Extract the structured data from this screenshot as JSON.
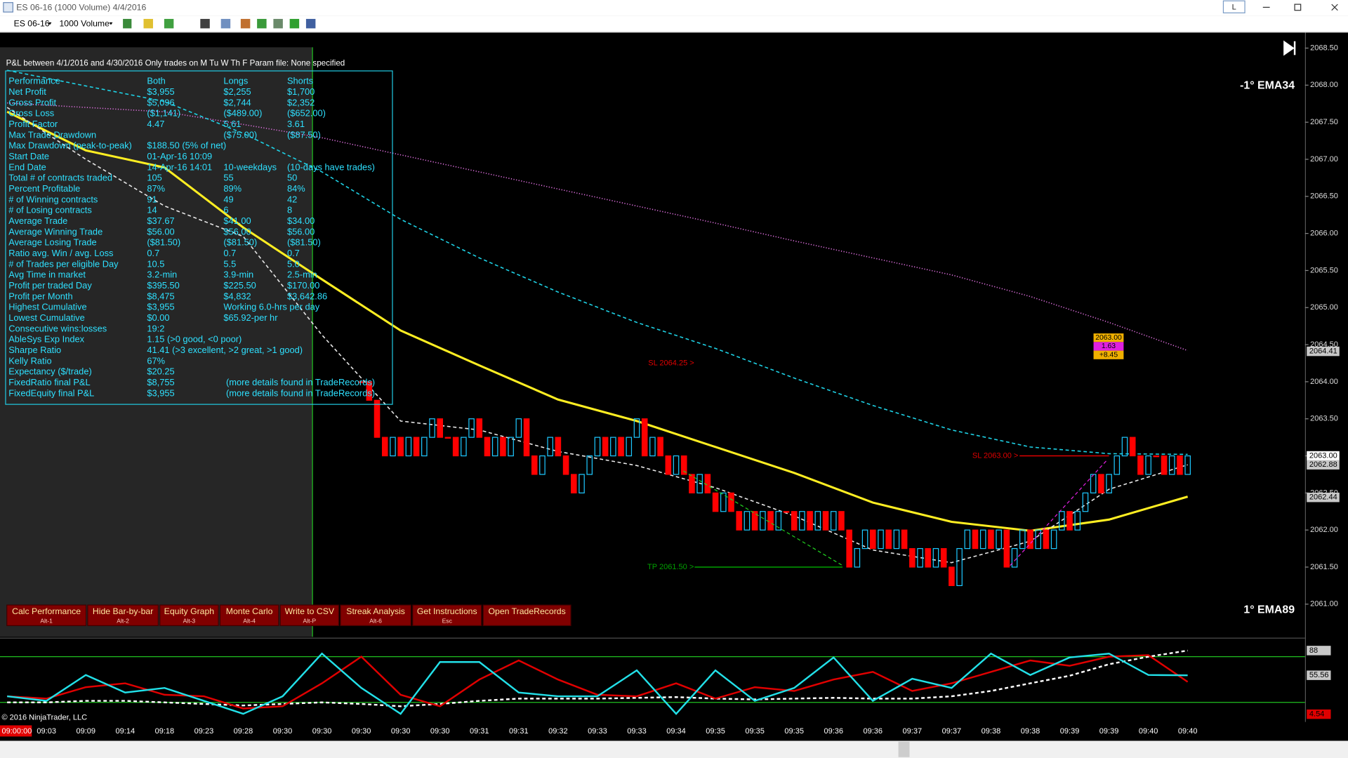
{
  "window": {
    "title": "ES 06-16 (1000 Volume)  4/4/2016",
    "layout_button": "L"
  },
  "toolbar": {
    "instrument": "ES 06-16",
    "interval": "1000 Volume"
  },
  "report": {
    "header": "P&L between 4/1/2016 and 4/30/2016  Only trades on M Tu W Th F   Param file: None specified",
    "rows": [
      [
        "Performance",
        "Both",
        "Longs",
        "Shorts"
      ],
      [
        "Net Profit",
        "$3,955",
        "$2,255",
        "$1,700"
      ],
      [
        "Gross Profit",
        "$5,096",
        "$2,744",
        "$2,352"
      ],
      [
        "Gross Loss",
        "($1,141)",
        "($489.00)",
        "($652.00)"
      ],
      [
        "Profit Factor",
        "4.47",
        "5.61",
        "3.61"
      ],
      [
        "Max Trade Drawdown",
        null,
        "($75.00)",
        "($87.50)"
      ],
      [
        "Max Drawdown (peak-to-peak)",
        "$188.50 (5% of net)"
      ],
      [
        "Start Date",
        "01-Apr-16 10:09"
      ],
      [
        "End Date",
        "14-Apr-16 14:01",
        "10-weekdays",
        "(10-days have trades)"
      ],
      [
        "Total # of contracts traded",
        "105",
        "55",
        "50"
      ],
      [
        "Percent Profitable",
        "87%",
        "89%",
        "84%"
      ],
      [
        "# of Winning contracts",
        "91",
        "49",
        "42"
      ],
      [
        "# of Losing contracts",
        "14",
        "6",
        "8"
      ],
      [
        "Average Trade",
        "$37.67",
        "$41.00",
        "$34.00"
      ],
      [
        "Average Winning Trade",
        "$56.00",
        "$56.00",
        "$56.00"
      ],
      [
        "Average Losing Trade",
        "($81.50)",
        "($81.50)",
        "($81.50)"
      ],
      [
        "Ratio avg. Win / avg. Loss",
        "0.7",
        "0.7",
        "0.7"
      ],
      [
        "# of Trades per eligible Day",
        "10.5",
        "5.5",
        "5.0"
      ],
      [
        "Avg Time in market",
        "3.2-min",
        "3.9-min",
        "2.5-min"
      ],
      [
        "Profit per traded Day",
        "$395.50",
        "$225.50",
        "$170.00"
      ],
      [
        "Profit per Month",
        "$8,475",
        "$4,832",
        "$3,642.86"
      ],
      [
        "Highest Cumulative",
        "$3,955",
        "Working 6.0-hrs per day"
      ],
      [
        "Lowest Cumulative",
        "$0.00",
        "$65.92-per hr"
      ],
      [
        "Consecutive wins:losses",
        "19:2"
      ],
      [
        "AbleSys Exp Index",
        "1.15 (>0 good, <0 poor)"
      ],
      [
        "Sharpe Ratio",
        "41.41 (>3 excellent, >2 great, >1 good)"
      ],
      [
        "Kelly Ratio",
        "67%"
      ],
      [
        "Expectancy ($/trade)",
        "$20.25"
      ],
      [
        "FixedRatio final P&L",
        "$8,755",
        "(more details found in TradeRecords)"
      ],
      [
        "FixedEquity final P&L",
        "$3,955",
        "(more details found in TradeRecords)"
      ]
    ]
  },
  "buttons": [
    {
      "label": "Calc Performance",
      "shortcut": "Alt-1"
    },
    {
      "label": "Hide Bar-by-bar",
      "shortcut": "Alt-2"
    },
    {
      "label": "Equity Graph",
      "shortcut": "Alt-3"
    },
    {
      "label": "Monte Carlo",
      "shortcut": "Alt-4"
    },
    {
      "label": "Write to CSV",
      "shortcut": "Alt-P"
    },
    {
      "label": "Streak Analysis",
      "shortcut": "Alt-6"
    },
    {
      "label": "Get Instructions",
      "shortcut": "Esc"
    },
    {
      "label": "Open TradeRecords"
    }
  ],
  "chart_data": {
    "type": "candlestick",
    "ylim": [
      2060.6,
      2068.7
    ],
    "yticks": [
      {
        "value": 2068.5,
        "label": "2068.50"
      },
      {
        "value": 2068,
        "label": "2068.00"
      },
      {
        "value": 2067.5,
        "label": "2067.50"
      },
      {
        "value": 2067,
        "label": "2067.00"
      },
      {
        "value": 2066.5,
        "label": "2066.50"
      },
      {
        "value": 2066,
        "label": "2066.00"
      },
      {
        "value": 2065.5,
        "label": "2065.50"
      },
      {
        "value": 2065,
        "label": "2065.00"
      },
      {
        "value": 2064.5,
        "label": "2064.50"
      },
      {
        "value": 2064,
        "label": "2064.00"
      },
      {
        "value": 2063.5,
        "label": "2063.50"
      },
      {
        "value": 2063,
        "label": "2063.00"
      },
      {
        "value": 2062.5,
        "label": "2062.50"
      },
      {
        "value": 2062,
        "label": "2062.00"
      },
      {
        "value": 2061.5,
        "label": "2061.50"
      },
      {
        "value": 2061,
        "label": "2061.00"
      }
    ],
    "time_labels": [
      "09:00:00",
      "09:03",
      "09:09",
      "09:14",
      "09:18",
      "09:23",
      "09:28",
      "09:30",
      "09:30",
      "09:30",
      "09:30",
      "09:30",
      "09:31",
      "09:31",
      "09:32",
      "09:33",
      "09:33",
      "09:34",
      "09:35",
      "09:35",
      "09:35",
      "09:36",
      "09:36",
      "09:37",
      "09:37",
      "09:38",
      "09:38",
      "09:39",
      "09:39",
      "09:40",
      "09:40"
    ],
    "candles": {
      "up_color": "#1ec8ff",
      "down_color": "#ff0000",
      "close": [
        2064.0,
        2063.75,
        2063.25,
        2063.0,
        2063.25,
        2063.0,
        2063.25,
        2063.0,
        2063.25,
        2063.5,
        2063.25,
        2063.25,
        2063.0,
        2063.25,
        2063.5,
        2063.25,
        2063.0,
        2063.25,
        2063.0,
        2063.25,
        2063.5,
        2063.0,
        2062.75,
        2063.0,
        2063.25,
        2063.0,
        2062.75,
        2062.5,
        2062.75,
        2063.0,
        2063.25,
        2063.0,
        2063.25,
        2063.0,
        2063.25,
        2063.5,
        2063.0,
        2063.25,
        2063.0,
        2062.75,
        2063.0,
        2062.75,
        2062.5,
        2062.75,
        2062.5,
        2062.25,
        2062.5,
        2062.25,
        2062.0,
        2062.25,
        2062.0,
        2062.25,
        2062.0,
        2062.25,
        2062.25,
        2062.0,
        2062.25,
        2062.0,
        2062.25,
        2062.0,
        2062.25,
        2062.0,
        2061.5,
        2061.75,
        2062.0,
        2061.75,
        2062.0,
        2061.75,
        2062.0,
        2061.75,
        2061.5,
        2061.75,
        2061.5,
        2061.75,
        2061.5,
        2061.25,
        2061.75,
        2062.0,
        2061.75,
        2062.0,
        2061.75,
        2062.0,
        2061.5,
        2061.75,
        2062.0,
        2061.75,
        2062.0,
        2061.75,
        2062.0,
        2062.25,
        2062.0,
        2062.25,
        2062.5,
        2062.75,
        2062.5,
        2062.75,
        2063.0,
        2063.25,
        2063.0,
        2062.75,
        2063.0,
        2063.0,
        2062.75,
        2063.0,
        2062.75,
        2063.0
      ]
    },
    "lines": [
      {
        "color": "#e070e0",
        "style": "dotted",
        "values": [
          2067.76,
          2067.7,
          2067.64,
          2067.47,
          2067.29,
          2067.06,
          2066.83,
          2066.6,
          2066.37,
          2066.14,
          2065.9,
          2065.67,
          2065.44,
          2065.15,
          2064.8,
          2064.42
        ]
      },
      {
        "color": "#1ed2e6",
        "style": "dashed",
        "values": [
          2068.2,
          2067.99,
          2067.78,
          2067.35,
          2066.83,
          2066.19,
          2065.67,
          2065.21,
          2064.8,
          2064.45,
          2064.05,
          2063.68,
          2063.35,
          2063.12,
          2063.03,
          2063.02
        ]
      },
      {
        "color": "#ffee22",
        "style": "solid",
        "values": [
          2067.64,
          2067.12,
          2066.89,
          2066.08,
          2065.38,
          2064.69,
          2064.22,
          2063.76,
          2063.47,
          2063.12,
          2062.77,
          2062.37,
          2062.11,
          2061.99,
          2062.14,
          2062.45
        ]
      },
      {
        "color": "#e8e8e8",
        "style": "dashed",
        "values": [
          2067.7,
          2067.0,
          2066.37,
          2065.96,
          2064.63,
          2063.47,
          2063.35,
          2063.06,
          2062.87,
          2062.57,
          2062.19,
          2061.73,
          2061.56,
          2061.85,
          2062.55,
          2062.88
        ]
      }
    ],
    "labels": [
      "-1° EMA34",
      "1° EMA89"
    ],
    "annotations": [
      {
        "text": "SL 2064.25 >",
        "value": 2064.25,
        "color": "#e00000"
      },
      {
        "text": "SL 2063.00 >",
        "value": 2063.0,
        "color": "#e00000"
      },
      {
        "text": "TP 2061.50 >",
        "value": 2061.5,
        "color": "#00a000"
      }
    ],
    "price_markers": [
      {
        "value": 2064.41,
        "label": "2064.41",
        "color": "#c8c8c8"
      },
      {
        "value": 2063.0,
        "label": "2063.00",
        "color": "#ffffff"
      },
      {
        "value": 2062.88,
        "label": "2062.88",
        "color": "#c8c8c8"
      },
      {
        "value": 2062.44,
        "label": "2062.44",
        "color": "#c8c8c8"
      }
    ],
    "order_flag": [
      "2063.00",
      "1.63",
      "+8.45"
    ],
    "oscillator": {
      "ylim": [
        -5,
        98
      ],
      "levels": [
        80,
        20
      ],
      "series": [
        {
          "color": "#ffffff",
          "style": "dashed",
          "values": [
            20,
            20,
            22,
            22,
            20,
            18,
            16,
            18,
            20,
            18,
            15,
            18,
            22,
            25,
            25,
            25,
            26,
            27,
            25,
            24,
            25,
            26,
            25,
            25,
            28,
            35,
            45,
            55,
            70,
            80,
            88
          ]
        },
        {
          "color": "#e00000",
          "style": "solid",
          "values": [
            28,
            25,
            40,
            45,
            30,
            28,
            12,
            15,
            45,
            80,
            30,
            15,
            50,
            75,
            50,
            30,
            28,
            45,
            25,
            40,
            35,
            50,
            60,
            35,
            45,
            60,
            75,
            68,
            80,
            82,
            47
          ]
        },
        {
          "color": "#22e0e8",
          "style": "solid",
          "values": [
            28,
            22,
            56,
            33,
            39,
            22,
            5,
            28,
            84,
            39,
            5,
            73,
            73,
            33,
            28,
            28,
            62,
            5,
            62,
            22,
            39,
            79,
            22,
            51,
            39,
            84,
            56,
            79,
            84,
            56,
            55.56
          ]
        }
      ],
      "markers": [
        {
          "value": 88,
          "color": "#c8c8c8"
        },
        {
          "value": 55.56,
          "color": "#c8c8c8"
        },
        {
          "value": 4.54,
          "color": "#e00000"
        }
      ]
    },
    "copyright": "© 2016 NinjaTrader, LLC"
  }
}
